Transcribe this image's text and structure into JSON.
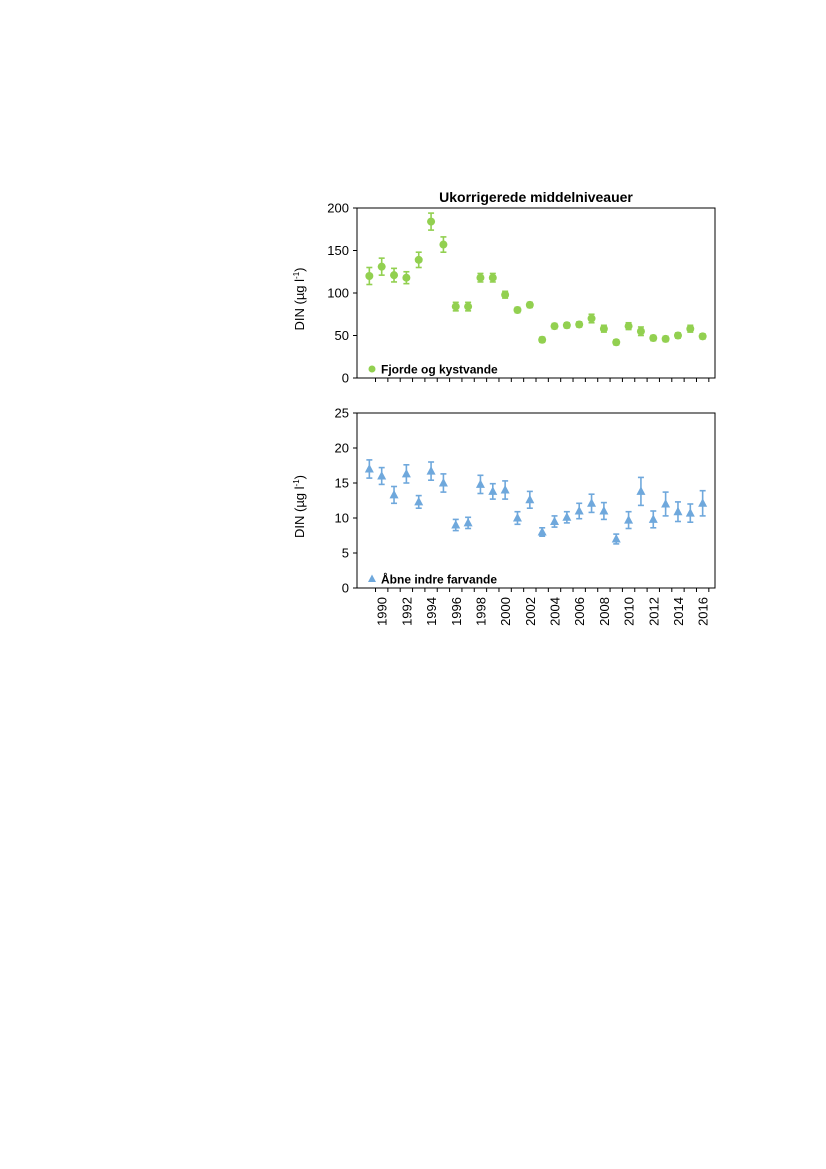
{
  "chart_data": [
    {
      "type": "scatter",
      "title": "Ukorrigerede middelniveauer",
      "xlabel": "",
      "ylabel_main": "DIN (µg l",
      "ylabel_sup": "-1",
      "ylabel_close": ")",
      "ylim": [
        0,
        200
      ],
      "yticks": [
        "0",
        "50",
        "100",
        "150",
        "200"
      ],
      "ytick_values": [
        0,
        50,
        100,
        150,
        200
      ],
      "marker": "circle",
      "color": "#92d050",
      "legend": "Fjorde og kystvande",
      "legend_position": "bottom-left",
      "series": [
        {
          "name": "Fjorde og kystvande",
          "x": [
            1989,
            1990,
            1991,
            1992,
            1993,
            1994,
            1995,
            1996,
            1997,
            1998,
            1999,
            2000,
            2001,
            2002,
            2003,
            2004,
            2005,
            2006,
            2007,
            2008,
            2009,
            2010,
            2011,
            2012,
            2013,
            2014,
            2015,
            2016
          ],
          "values": [
            120,
            131,
            121,
            118,
            139,
            184,
            157,
            84,
            84,
            118,
            118,
            98,
            80,
            86,
            45,
            61,
            62,
            63,
            70,
            58,
            42,
            61,
            55,
            47,
            46,
            50,
            58,
            49
          ],
          "err": [
            10,
            10,
            8,
            7,
            9,
            10,
            9,
            5,
            5,
            5,
            5,
            4,
            3,
            3,
            3,
            3,
            3,
            3,
            5,
            4,
            3,
            4,
            5,
            3,
            3,
            3,
            4,
            3
          ]
        }
      ]
    },
    {
      "type": "scatter",
      "title": "",
      "xlabel": "",
      "ylabel_main": "DIN (µg l",
      "ylabel_sup": "-1",
      "ylabel_close": ")",
      "ylim": [
        0,
        25
      ],
      "yticks": [
        "0",
        "5",
        "10",
        "15",
        "20",
        "25"
      ],
      "ytick_values": [
        0,
        5,
        10,
        15,
        20,
        25
      ],
      "marker": "triangle",
      "color": "#6fa8dc",
      "legend": "Åbne indre farvande",
      "legend_position": "bottom-left",
      "x_tick_labels": [
        "1990",
        "1992",
        "1994",
        "1996",
        "1998",
        "2000",
        "2002",
        "2004",
        "2006",
        "2008",
        "2010",
        "2012",
        "2014",
        "2016"
      ],
      "x_tick_values": [
        1990,
        1992,
        1994,
        1996,
        1998,
        2000,
        2002,
        2004,
        2006,
        2008,
        2010,
        2012,
        2014,
        2016
      ],
      "series": [
        {
          "name": "Åbne indre farvande",
          "x": [
            1989,
            1990,
            1991,
            1992,
            1993,
            1994,
            1995,
            1996,
            1997,
            1998,
            1999,
            2000,
            2001,
            2002,
            2003,
            2004,
            2005,
            2006,
            2007,
            2008,
            2009,
            2010,
            2011,
            2012,
            2013,
            2014,
            2015,
            2016
          ],
          "values": [
            17,
            16,
            13.3,
            16.3,
            12.3,
            16.7,
            15,
            9,
            9.3,
            14.8,
            13.8,
            14,
            10,
            12.6,
            8,
            9.5,
            10.1,
            11,
            12.1,
            11,
            7,
            9.7,
            13.8,
            9.8,
            12,
            10.9,
            10.7,
            12.1
          ],
          "err": [
            1.3,
            1.2,
            1.2,
            1.3,
            0.9,
            1.3,
            1.3,
            0.8,
            0.8,
            1.3,
            1.1,
            1.3,
            0.9,
            1.2,
            0.6,
            0.8,
            0.8,
            1.1,
            1.3,
            1.2,
            0.7,
            1.2,
            2,
            1.2,
            1.7,
            1.4,
            1.3,
            1.8
          ]
        }
      ]
    }
  ]
}
